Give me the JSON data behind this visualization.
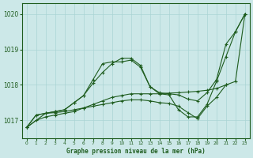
{
  "title": "Graphe pression niveau de la mer (hPa)",
  "background_color": "#cce8e8",
  "grid_color": "#aad4d4",
  "line_color": "#1e5c1e",
  "xlim": [
    -0.5,
    23.5
  ],
  "ylim": [
    1016.5,
    1020.3
  ],
  "yticks": [
    1017,
    1018,
    1019,
    1020
  ],
  "xticks": [
    0,
    1,
    2,
    3,
    4,
    5,
    6,
    7,
    8,
    9,
    10,
    11,
    12,
    13,
    14,
    15,
    16,
    17,
    18,
    19,
    20,
    21,
    22,
    23
  ],
  "series": [
    {
      "x": [
        0,
        1,
        2,
        3,
        4,
        5,
        6,
        7,
        8,
        9,
        10,
        11,
        12,
        13,
        14,
        15,
        16,
        17,
        18,
        19,
        20,
        21,
        22,
        23
      ],
      "y": [
        1016.8,
        1017.0,
        1017.1,
        1017.15,
        1017.2,
        1017.25,
        1017.35,
        1017.45,
        1017.55,
        1017.65,
        1017.7,
        1017.75,
        1017.75,
        1017.75,
        1017.75,
        1017.77,
        1017.78,
        1017.8,
        1017.82,
        1017.85,
        1017.9,
        1018.0,
        1018.1,
        1020.0
      ],
      "marker": "+"
    },
    {
      "x": [
        0,
        1,
        2,
        3,
        4,
        5,
        6,
        7,
        8,
        9,
        10,
        11,
        12,
        13,
        14,
        15,
        16,
        17,
        18,
        19,
        20,
        21,
        22,
        23
      ],
      "y": [
        1016.8,
        1017.15,
        1017.2,
        1017.25,
        1017.3,
        1017.5,
        1017.7,
        1018.15,
        1018.6,
        1018.65,
        1018.65,
        1018.7,
        1018.5,
        1017.95,
        1017.75,
        1017.72,
        1017.3,
        1017.1,
        1017.1,
        1017.45,
        1018.1,
        1018.8,
        1019.5,
        1020.0
      ],
      "marker": "+"
    },
    {
      "x": [
        0,
        2,
        3,
        4,
        5,
        6,
        7,
        8,
        9,
        10,
        11,
        12,
        13,
        14,
        15,
        16,
        17,
        18,
        19,
        20,
        21,
        22,
        23
      ],
      "y": [
        1016.8,
        1017.2,
        1017.25,
        1017.3,
        1017.5,
        1017.7,
        1018.05,
        1018.35,
        1018.6,
        1018.75,
        1018.75,
        1018.55,
        1017.95,
        1017.78,
        1017.75,
        1017.72,
        1017.6,
        1017.55,
        1017.78,
        1018.15,
        1019.15,
        1019.5,
        1020.0
      ],
      "marker": "+"
    },
    {
      "x": [
        0,
        1,
        2,
        3,
        4,
        5,
        6,
        7,
        8,
        9,
        10,
        11,
        12,
        13,
        14,
        15,
        16,
        17,
        18,
        19,
        20,
        21,
        22,
        23
      ],
      "y": [
        1016.8,
        1017.15,
        1017.2,
        1017.22,
        1017.25,
        1017.3,
        1017.35,
        1017.4,
        1017.45,
        1017.5,
        1017.55,
        1017.58,
        1017.58,
        1017.55,
        1017.5,
        1017.48,
        1017.4,
        1017.22,
        1017.05,
        1017.4,
        1017.65,
        1018.0,
        null,
        null
      ],
      "marker": "+"
    }
  ]
}
